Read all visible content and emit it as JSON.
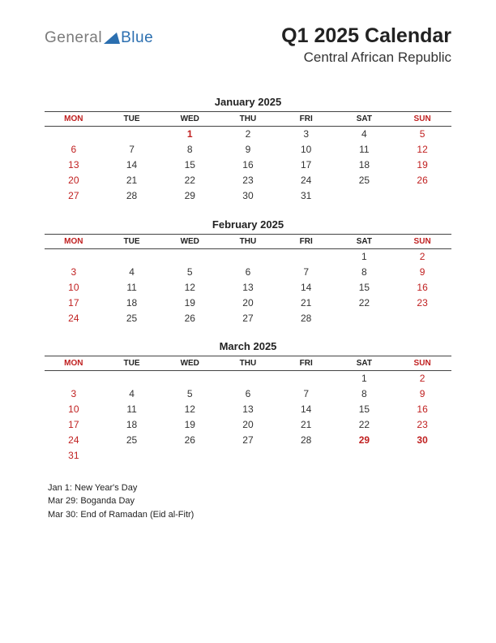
{
  "logo": {
    "word1": "General",
    "word2": "Blue",
    "shape_color": "#2b6fb0",
    "word1_color": "#7b7b7b",
    "word2_color": "#2b6fb0"
  },
  "title": "Q1 2025 Calendar",
  "subtitle": "Central African Republic",
  "colors": {
    "red": "#c02020",
    "text": "#333333",
    "rule": "#444444",
    "background": "#ffffff"
  },
  "fonts": {
    "title_size": 25,
    "subtitle_size": 17,
    "month_title_size": 13,
    "header_size": 10,
    "cell_size": 12,
    "holiday_size": 11
  },
  "day_headers": [
    "MON",
    "TUE",
    "WED",
    "THU",
    "FRI",
    "SAT",
    "SUN"
  ],
  "red_header_cols": [
    0,
    6
  ],
  "months": [
    {
      "title": "January 2025",
      "weeks": [
        [
          "",
          "",
          "1",
          "2",
          "3",
          "4",
          "5"
        ],
        [
          "6",
          "7",
          "8",
          "9",
          "10",
          "11",
          "12"
        ],
        [
          "13",
          "14",
          "15",
          "16",
          "17",
          "18",
          "19"
        ],
        [
          "20",
          "21",
          "22",
          "23",
          "24",
          "25",
          "26"
        ],
        [
          "27",
          "28",
          "29",
          "30",
          "31",
          "",
          ""
        ]
      ],
      "red_cells": [
        [
          0,
          0
        ],
        [
          0,
          6
        ],
        [
          0,
          2
        ],
        [
          1,
          0
        ],
        [
          1,
          6
        ],
        [
          2,
          0
        ],
        [
          2,
          6
        ],
        [
          3,
          0
        ],
        [
          3,
          6
        ],
        [
          4,
          0
        ]
      ],
      "red_bold_cells": [
        [
          0,
          2
        ]
      ]
    },
    {
      "title": "February 2025",
      "weeks": [
        [
          "",
          "",
          "",
          "",
          "",
          "1",
          "2"
        ],
        [
          "3",
          "4",
          "5",
          "6",
          "7",
          "8",
          "9"
        ],
        [
          "10",
          "11",
          "12",
          "13",
          "14",
          "15",
          "16"
        ],
        [
          "17",
          "18",
          "19",
          "20",
          "21",
          "22",
          "23"
        ],
        [
          "24",
          "25",
          "26",
          "27",
          "28",
          "",
          ""
        ]
      ],
      "red_cells": [
        [
          0,
          6
        ],
        [
          1,
          0
        ],
        [
          1,
          6
        ],
        [
          2,
          0
        ],
        [
          2,
          6
        ],
        [
          3,
          0
        ],
        [
          3,
          6
        ],
        [
          4,
          0
        ]
      ],
      "red_bold_cells": []
    },
    {
      "title": "March 2025",
      "weeks": [
        [
          "",
          "",
          "",
          "",
          "",
          "1",
          "2"
        ],
        [
          "3",
          "4",
          "5",
          "6",
          "7",
          "8",
          "9"
        ],
        [
          "10",
          "11",
          "12",
          "13",
          "14",
          "15",
          "16"
        ],
        [
          "17",
          "18",
          "19",
          "20",
          "21",
          "22",
          "23"
        ],
        [
          "24",
          "25",
          "26",
          "27",
          "28",
          "29",
          "30"
        ],
        [
          "31",
          "",
          "",
          "",
          "",
          "",
          ""
        ]
      ],
      "red_cells": [
        [
          0,
          6
        ],
        [
          1,
          0
        ],
        [
          1,
          6
        ],
        [
          2,
          0
        ],
        [
          2,
          6
        ],
        [
          3,
          0
        ],
        [
          3,
          6
        ],
        [
          4,
          0
        ],
        [
          4,
          5
        ],
        [
          4,
          6
        ],
        [
          5,
          0
        ]
      ],
      "red_bold_cells": [
        [
          4,
          5
        ],
        [
          4,
          6
        ]
      ]
    }
  ],
  "holidays": [
    "Jan 1: New Year's Day",
    "Mar 29: Boganda Day",
    "Mar 30: End of Ramadan (Eid al-Fitr)"
  ]
}
